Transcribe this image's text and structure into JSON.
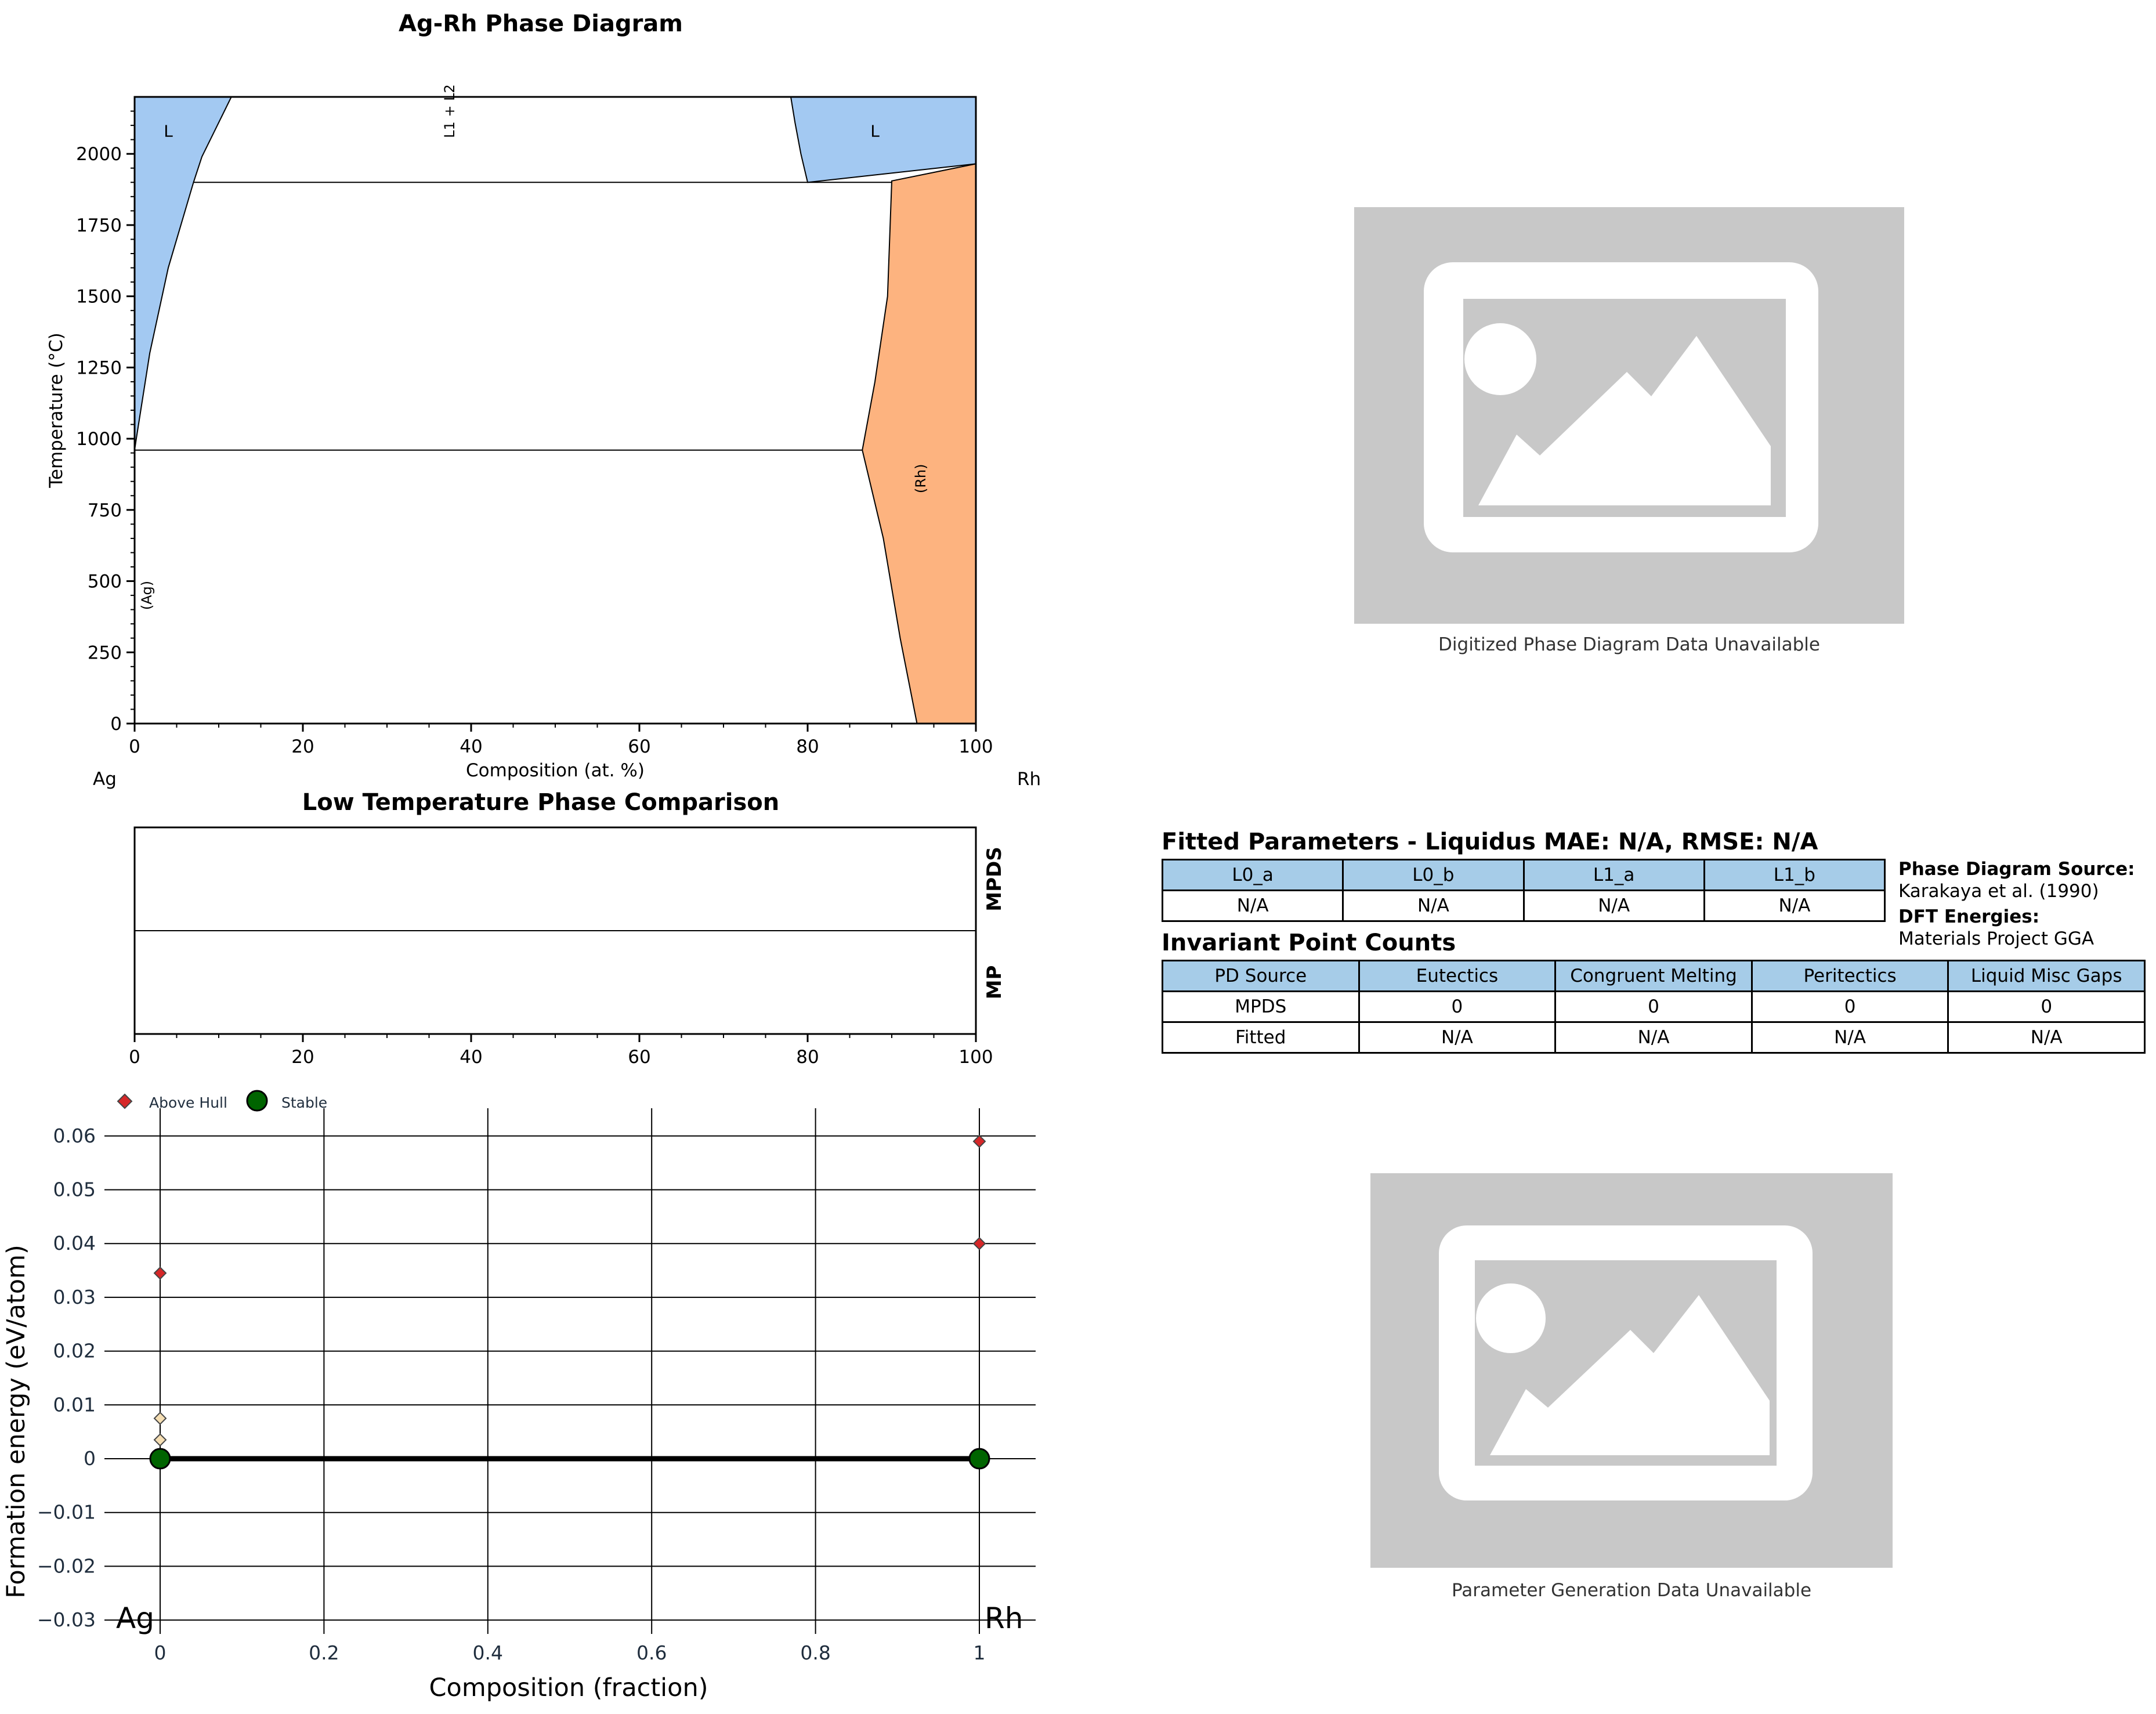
{
  "chart_data": [
    {
      "type": "area",
      "title": "Ag-Rh Phase Diagram",
      "xlabel": "Composition (at. %)",
      "ylabel": "Temperature (°C)",
      "xlim": [
        0,
        100
      ],
      "ylim": [
        0,
        2200
      ],
      "xticks": [
        0,
        20,
        40,
        60,
        80,
        100
      ],
      "yticks": [
        0,
        250,
        500,
        750,
        1000,
        1250,
        1500,
        1750,
        2000
      ],
      "left_element": "Ag",
      "right_element": "Rh",
      "colors": {
        "liquid": "#a3c9f2",
        "solid": "#fdb37f"
      },
      "regions": [
        {
          "label": "L",
          "phase": "liquid",
          "label_at": [
            4,
            2060
          ],
          "polygon": [
            [
              0,
              2200
            ],
            [
              11.5,
              2200
            ],
            [
              10,
              2110
            ],
            [
              8,
              1990
            ],
            [
              7,
              1900
            ],
            [
              4,
              1600
            ],
            [
              1.8,
              1300
            ],
            [
              0.2,
              1000
            ],
            [
              0,
              960
            ]
          ]
        },
        {
          "label": "L",
          "phase": "liquid",
          "label_at": [
            88,
            2060
          ],
          "polygon": [
            [
              78,
              2200
            ],
            [
              100,
              2200
            ],
            [
              100,
              1965
            ],
            [
              80,
              1900
            ],
            [
              79.2,
              2000
            ],
            [
              78.5,
              2110
            ]
          ]
        },
        {
          "label": "(Rh)",
          "phase": "solid",
          "label_at": [
            94,
            860
          ],
          "polygon": [
            [
              90,
              1905
            ],
            [
              100,
              1965
            ],
            [
              100,
              0
            ],
            [
              93,
              0
            ],
            [
              91,
              300
            ],
            [
              89,
              650
            ],
            [
              86.5,
              960
            ],
            [
              88,
              1200
            ],
            [
              89.5,
              1500
            ],
            [
              90,
              1905
            ]
          ]
        },
        {
          "label": "L1 + L2",
          "phase": "none",
          "label_at": [
            38,
            2150
          ],
          "polygon": []
        },
        {
          "label": "(Ag)",
          "phase": "none",
          "label_at": [
            2,
            450
          ],
          "polygon": []
        }
      ],
      "invariant_lines": [
        1900,
        960
      ]
    },
    {
      "type": "bar",
      "title": "Low Temperature Phase Comparison",
      "xlim": [
        0,
        100
      ],
      "xticks": [
        0,
        20,
        40,
        60,
        80,
        100
      ],
      "rows": [
        "MPDS",
        "MP"
      ]
    },
    {
      "type": "scatter",
      "xlabel": "Composition (fraction)",
      "ylabel": "Formation energy (eV/atom)",
      "xlim": [
        -0.05,
        1.05
      ],
      "ylim": [
        -0.03,
        0.06
      ],
      "xticks": [
        0,
        0.2,
        0.4,
        0.6,
        0.8,
        1
      ],
      "xtick_labels": [
        "0",
        "0.2",
        "0.4",
        "0.6",
        "0.8",
        "1"
      ],
      "yticks": [
        -0.03,
        -0.02,
        -0.01,
        0,
        0.01,
        0.02,
        0.03,
        0.04,
        0.05,
        0.06
      ],
      "ytick_labels": [
        "−0.03",
        "−0.02",
        "−0.01",
        "0",
        "0.01",
        "0.02",
        "0.03",
        "0.04",
        "0.05",
        "0.06"
      ],
      "end_labels": {
        "left": "Ag",
        "right": "Rh"
      },
      "legend": [
        "Above Hull",
        "Stable"
      ],
      "legend_position": "top-left",
      "series": [
        {
          "name": "Above Hull",
          "color": "#d62728",
          "points": [
            [
              0,
              0.0345
            ],
            [
              1,
              0.059
            ],
            [
              1,
              0.04
            ]
          ]
        },
        {
          "name": "Stable",
          "color": "#006400",
          "points": [
            [
              0,
              0
            ],
            [
              1,
              0
            ]
          ]
        },
        {
          "color": "#f5deb3",
          "points": [
            [
              0,
              0.0075
            ],
            [
              0,
              0.0035
            ]
          ]
        }
      ],
      "hull": [
        [
          0,
          0
        ],
        [
          1,
          0
        ]
      ]
    }
  ],
  "images": [
    {
      "caption": "Digitized Phase Diagram Data Unavailable",
      "icon": "image-placeholder-icon"
    },
    {
      "caption": "Parameter Generation Data Unavailable",
      "icon": "image-placeholder-icon"
    }
  ],
  "fitted": {
    "title": "Fitted Parameters - Liquidus MAE: N/A, RMSE: N/A",
    "headers": [
      "L0_a",
      "L0_b",
      "L1_a",
      "L1_b"
    ],
    "values": [
      "N/A",
      "N/A",
      "N/A",
      "N/A"
    ]
  },
  "source": {
    "pd_label": "Phase Diagram Source:",
    "pd_value": "Karakaya et al. (1990)",
    "dft_label": "DFT Energies:",
    "dft_value": "Materials Project GGA"
  },
  "invariant": {
    "title": "Invariant Point Counts",
    "headers": [
      "PD Source",
      "Eutectics",
      "Congruent Melting",
      "Peritectics",
      "Liquid Misc Gaps"
    ],
    "rows": [
      [
        "MPDS",
        "0",
        "0",
        "0",
        "0"
      ],
      [
        "Fitted",
        "N/A",
        "N/A",
        "N/A",
        "N/A"
      ]
    ]
  }
}
